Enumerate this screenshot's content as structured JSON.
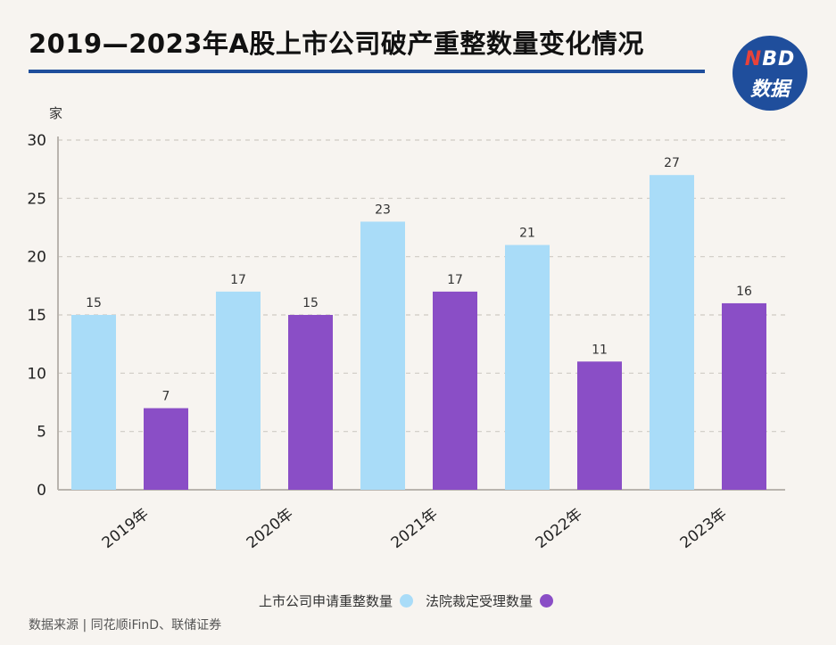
{
  "header": {
    "title": "2019—2023年A股上市公司破产重整数量变化情况",
    "logo_top": "NBD",
    "logo_bottom": "数据"
  },
  "chart_data": {
    "type": "bar",
    "ylabel": "家",
    "ylim": [
      0,
      30
    ],
    "yticks": [
      0,
      5,
      10,
      15,
      20,
      25,
      30
    ],
    "categories": [
      "2019年",
      "2020年",
      "2021年",
      "2022年",
      "2023年"
    ],
    "series": [
      {
        "name": "上市公司申请重整数量",
        "color": "#a9dcf8",
        "values": [
          15,
          17,
          23,
          21,
          27
        ]
      },
      {
        "name": "法院裁定受理数量",
        "color": "#8a4ec6",
        "values": [
          7,
          15,
          17,
          11,
          16
        ]
      }
    ],
    "legend_position": "bottom-center",
    "grid": true
  },
  "footer": {
    "source": "数据来源 | 同花顺iFinD、联储证券"
  }
}
